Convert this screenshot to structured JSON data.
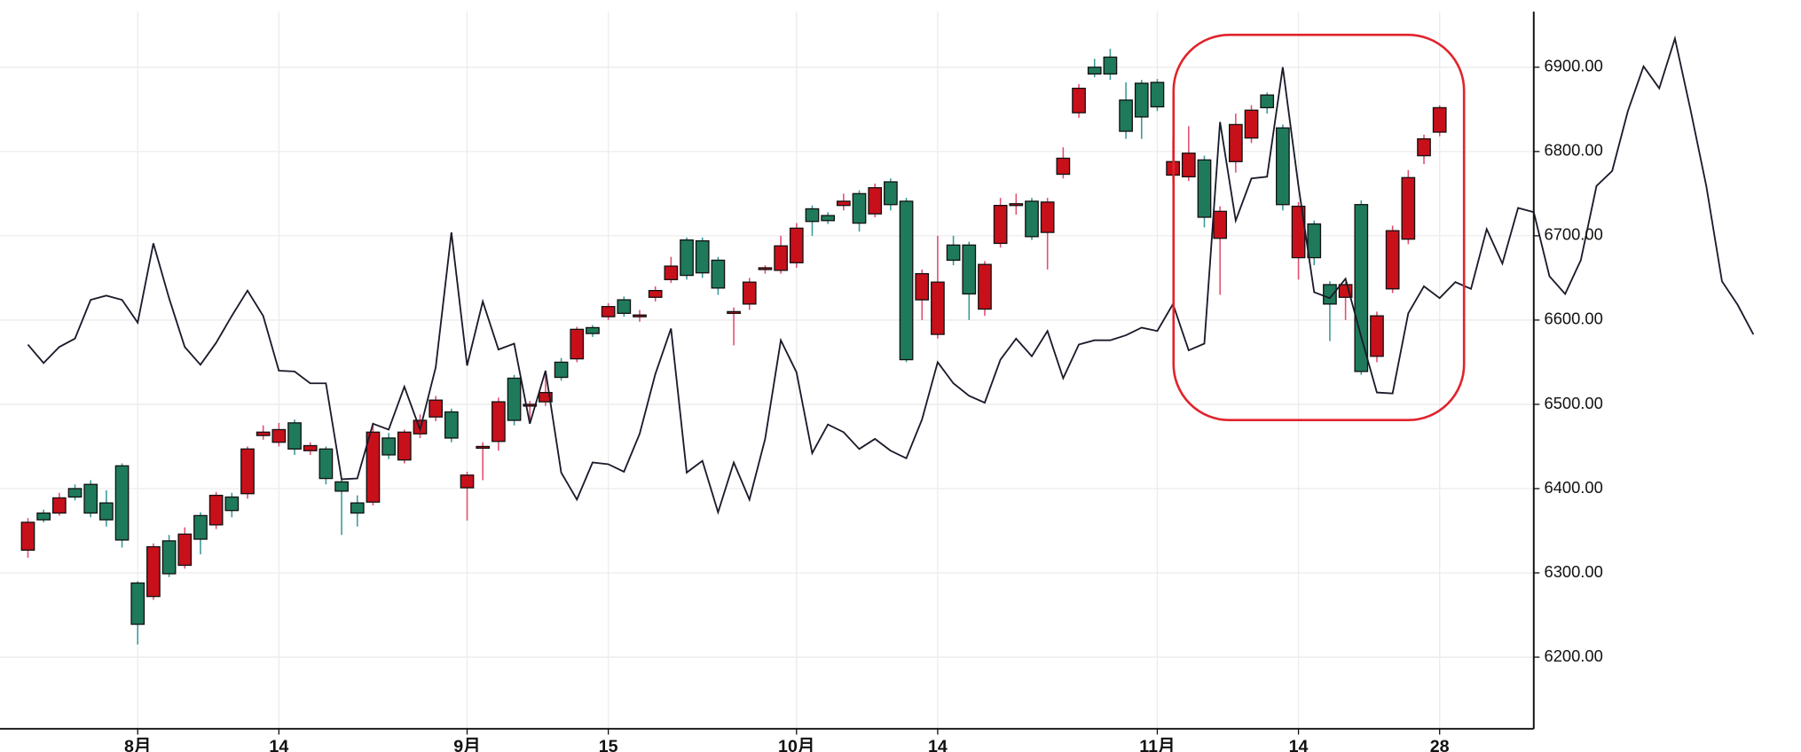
{
  "chart_data": {
    "type": "candlestick",
    "up_color": "#c8101a",
    "down_color": "#1e7a5a",
    "up_wick_color": "#e05070",
    "down_wick_color": "#3a9a9a",
    "grid": true,
    "xlim": [
      -1.78,
      96
    ],
    "xticks": [
      {
        "value": 7,
        "label": "8月"
      },
      {
        "value": 16,
        "label": "14"
      },
      {
        "value": 28,
        "label": "9月"
      },
      {
        "value": 37,
        "label": "15"
      },
      {
        "value": 49,
        "label": "10月"
      },
      {
        "value": 58,
        "label": "14"
      },
      {
        "value": 72,
        "label": "11月"
      },
      {
        "value": 81,
        "label": "14"
      },
      {
        "value": 90,
        "label": "28"
      }
    ],
    "ylim": [
      6115,
      6966
    ],
    "yticks": [
      {
        "value": 6200,
        "label": "6200.00"
      },
      {
        "value": 6300,
        "label": "6300.00"
      },
      {
        "value": 6400,
        "label": "6400.00"
      },
      {
        "value": 6500,
        "label": "6500.00"
      },
      {
        "value": 6600,
        "label": "6600.00"
      },
      {
        "value": 6700,
        "label": "6700.00"
      },
      {
        "value": 6800,
        "label": "6800.00"
      },
      {
        "value": 6900,
        "label": "6900.00"
      }
    ],
    "candles": [
      [
        6327,
        6365,
        6318,
        6360
      ],
      [
        6371,
        6375,
        6360,
        6363
      ],
      [
        6371,
        6395,
        6368,
        6389
      ],
      [
        6400,
        6405,
        6386,
        6390
      ],
      [
        6405,
        6410,
        6366,
        6371
      ],
      [
        6383,
        6398,
        6355,
        6363
      ],
      [
        6427,
        6430,
        6330,
        6339
      ],
      [
        6288,
        6290,
        6215,
        6239
      ],
      [
        6272,
        6335,
        6268,
        6331
      ],
      [
        6338,
        6345,
        6295,
        6299
      ],
      [
        6309,
        6354,
        6305,
        6346
      ],
      [
        6368,
        6372,
        6322,
        6340
      ],
      [
        6357,
        6396,
        6352,
        6392
      ],
      [
        6390,
        6395,
        6366,
        6374
      ],
      [
        6394,
        6450,
        6388,
        6447
      ],
      [
        6463,
        6475,
        6458,
        6467
      ],
      [
        6455,
        6478,
        6450,
        6470
      ],
      [
        6478,
        6482,
        6440,
        6447
      ],
      [
        6445,
        6455,
        6440,
        6451
      ],
      [
        6447,
        6450,
        6405,
        6412
      ],
      [
        6408,
        6412,
        6345,
        6397
      ],
      [
        6383,
        6392,
        6355,
        6371
      ],
      [
        6384,
        6478,
        6380,
        6467
      ],
      [
        6460,
        6466,
        6435,
        6440
      ],
      [
        6434,
        6470,
        6430,
        6467
      ],
      [
        6465,
        6488,
        6460,
        6481
      ],
      [
        6485,
        6510,
        6480,
        6505
      ],
      [
        6491,
        6495,
        6455,
        6460
      ],
      [
        6401,
        6420,
        6362,
        6416
      ],
      [
        6448,
        6455,
        6410,
        6450
      ],
      [
        6456,
        6508,
        6445,
        6503
      ],
      [
        6531,
        6535,
        6475,
        6481
      ],
      [
        6498,
        6504,
        6480,
        6500
      ],
      [
        6503,
        6540,
        6498,
        6514
      ],
      [
        6550,
        6555,
        6528,
        6532
      ],
      [
        6554,
        6592,
        6550,
        6589
      ],
      [
        6591,
        6594,
        6580,
        6584
      ],
      [
        6604,
        6620,
        6600,
        6616
      ],
      [
        6624,
        6628,
        6604,
        6608
      ],
      [
        6604,
        6612,
        6598,
        6606
      ],
      [
        6627,
        6640,
        6622,
        6635
      ],
      [
        6648,
        6675,
        6644,
        6664
      ],
      [
        6695,
        6698,
        6648,
        6653
      ],
      [
        6694,
        6698,
        6650,
        6656
      ],
      [
        6671,
        6675,
        6630,
        6638
      ],
      [
        6609,
        6615,
        6570,
        6610
      ],
      [
        6619,
        6650,
        6612,
        6645
      ],
      [
        6661,
        6665,
        6655,
        6662
      ],
      [
        6659,
        6700,
        6655,
        6688
      ],
      [
        6668,
        6715,
        6662,
        6709
      ],
      [
        6732,
        6736,
        6700,
        6717
      ],
      [
        6724,
        6728,
        6714,
        6718
      ],
      [
        6736,
        6750,
        6730,
        6741
      ],
      [
        6750,
        6754,
        6705,
        6715
      ],
      [
        6726,
        6762,
        6722,
        6757
      ],
      [
        6764,
        6768,
        6730,
        6737
      ],
      [
        6741,
        6745,
        6550,
        6553
      ],
      [
        6624,
        6660,
        6600,
        6655
      ],
      [
        6583,
        6700,
        6578,
        6645
      ],
      [
        6689,
        6700,
        6665,
        6671
      ],
      [
        6689,
        6693,
        6600,
        6631
      ],
      [
        6613,
        6670,
        6605,
        6666
      ],
      [
        6691,
        6745,
        6686,
        6736
      ],
      [
        6737,
        6750,
        6725,
        6738
      ],
      [
        6741,
        6745,
        6695,
        6699
      ],
      [
        6704,
        6745,
        6660,
        6740
      ],
      [
        6773,
        6805,
        6768,
        6792
      ],
      [
        6846,
        6880,
        6840,
        6875
      ],
      [
        6900,
        6910,
        6888,
        6892
      ],
      [
        6912,
        6922,
        6885,
        6892
      ],
      [
        6861,
        6882,
        6815,
        6824
      ],
      [
        6881,
        6885,
        6815,
        6841
      ],
      [
        6882,
        6886,
        6848,
        6853
      ],
      [
        6772,
        6815,
        6765,
        6788
      ],
      [
        6770,
        6830,
        6765,
        6798
      ],
      [
        6790,
        6795,
        6710,
        6722
      ],
      [
        6697,
        6735,
        6630,
        6729
      ],
      [
        6788,
        6845,
        6775,
        6832
      ],
      [
        6816,
        6855,
        6810,
        6849
      ],
      [
        6867,
        6870,
        6845,
        6852
      ],
      [
        6828,
        6832,
        6730,
        6737
      ],
      [
        6674,
        6740,
        6648,
        6735
      ],
      [
        6714,
        6718,
        6665,
        6674
      ],
      [
        6642,
        6646,
        6575,
        6619
      ],
      [
        6627,
        6645,
        6600,
        6642
      ],
      [
        6737,
        6742,
        6535,
        6539
      ],
      [
        6557,
        6610,
        6550,
        6605
      ],
      [
        6637,
        6712,
        6632,
        6706
      ],
      [
        6696,
        6778,
        6690,
        6769
      ],
      [
        6795,
        6820,
        6785,
        6815
      ],
      [
        6823,
        6855,
        6818,
        6852
      ]
    ],
    "line": {
      "color": "#1a1a2a",
      "values": [
        6571,
        6549,
        6568,
        6578,
        6624,
        6629,
        6624,
        6597,
        6691,
        6626,
        6568,
        6547,
        6573,
        6605,
        6635,
        6605,
        6540,
        6539,
        6525,
        6525,
        6411,
        6412,
        6477,
        6470,
        6521,
        6470,
        6544,
        6704,
        6546,
        6622,
        6565,
        6572,
        6477,
        6540,
        6419,
        6387,
        6431,
        6429,
        6420,
        6465,
        6536,
        6590,
        6419,
        6433,
        6372,
        6431,
        6387,
        6459,
        6576,
        6538,
        6442,
        6476,
        6467,
        6447,
        6459,
        6445,
        6436,
        6482,
        6550,
        6525,
        6510,
        6502,
        6553,
        6578,
        6557,
        6587,
        6531,
        6571,
        6576,
        6576,
        6582,
        6591,
        6587,
        6619,
        6564,
        6572,
        6835,
        6718,
        6768,
        6770,
        6900,
        6759,
        6633,
        6626,
        6649,
        6580,
        6514,
        6513,
        6608,
        6640,
        6626,
        6645,
        6637,
        6708,
        6667,
        6733,
        6728,
        6652,
        6631,
        6671,
        6759,
        6777,
        6848,
        6901,
        6875,
        6934,
        6849,
        6759,
        6646,
        6618,
        6583
      ]
    }
  }
}
